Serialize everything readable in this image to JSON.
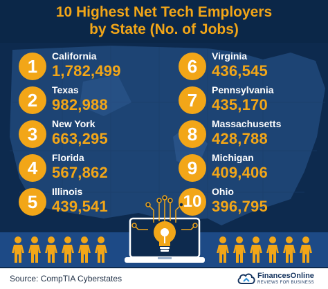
{
  "title": {
    "line1": "10 Highest Net Tech Employers",
    "line2": "by State (No. of Jobs)"
  },
  "states": [
    {
      "rank": "1",
      "state": "California",
      "jobs": "1,782,499"
    },
    {
      "rank": "2",
      "state": "Texas",
      "jobs": "982,988"
    },
    {
      "rank": "3",
      "state": "New York",
      "jobs": "663,295"
    },
    {
      "rank": "4",
      "state": "Florida",
      "jobs": "567,862"
    },
    {
      "rank": "5",
      "state": "Illinois",
      "jobs": "439,541"
    },
    {
      "rank": "6",
      "state": "Virginia",
      "jobs": "436,545"
    },
    {
      "rank": "7",
      "state": "Pennsylvania",
      "jobs": "435,170"
    },
    {
      "rank": "8",
      "state": "Massachusetts",
      "jobs": "428,788"
    },
    {
      "rank": "9",
      "state": "Michigan",
      "jobs": "409,406"
    },
    {
      "rank": "10",
      "state": "Ohio",
      "jobs": "396,795"
    }
  ],
  "footer": {
    "source": "Source: CompTIA Cyberstates",
    "brand": "FinancesOnline",
    "tagline": "REVIEWS FOR BUSINESS"
  },
  "colors": {
    "accent": "#f2a618",
    "background": "#0d2a4e",
    "band": "#1d4a86"
  },
  "icons": [
    "person-icon",
    "lightbulb-icon",
    "circuit-icon",
    "monitor-icon",
    "cloud-logo-icon"
  ]
}
